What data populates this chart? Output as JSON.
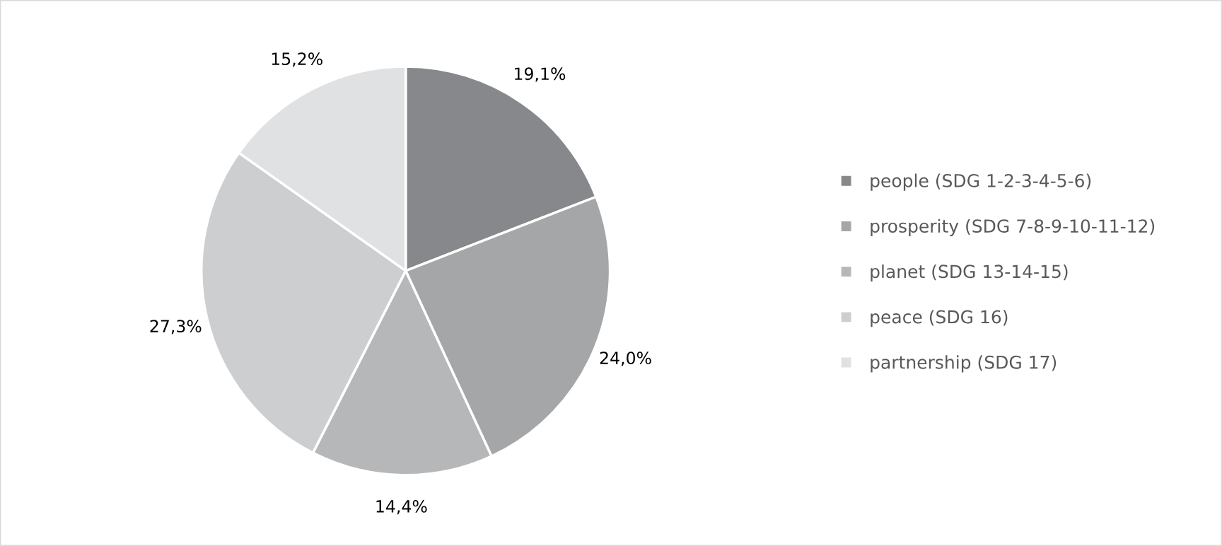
{
  "chart_data": {
    "type": "pie",
    "categories": [
      "people (SDG 1-2-3-4-5-6)",
      "prosperity (SDG 7-8-9-10-11-12)",
      "planet (SDG 13-14-15)",
      "peace (SDG 16)",
      "partnership (SDG 17)"
    ],
    "values": [
      19.1,
      24.0,
      14.4,
      27.3,
      15.2
    ],
    "value_labels": [
      "19,1%",
      "24,0%",
      "14,4%",
      "27,3%",
      "15,2%"
    ],
    "colors": [
      "#87888b",
      "#a5a6a8",
      "#b6b7b9",
      "#cdced0",
      "#e0e1e3"
    ],
    "legend": "right"
  }
}
